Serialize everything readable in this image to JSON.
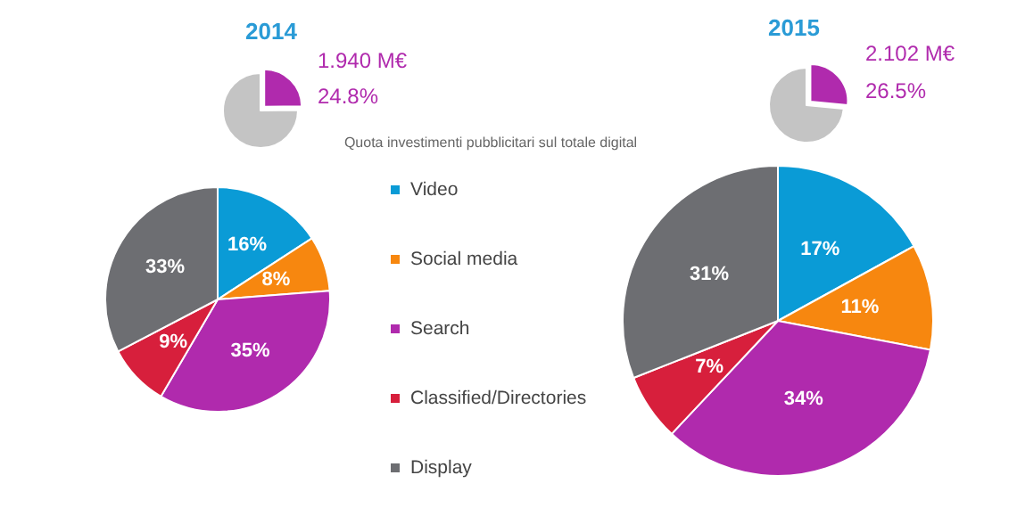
{
  "chart_data": [
    {
      "type": "pie",
      "title": "2014",
      "categories": [
        null,
        null
      ],
      "values": [
        24.8,
        75.2
      ],
      "colors": [
        "#b02aad",
        "#c4c4c4"
      ],
      "annotations": [
        "1.940 M€",
        "24.8%"
      ],
      "legend": false
    },
    {
      "type": "pie",
      "title": "2015",
      "categories": [
        null,
        null
      ],
      "values": [
        26.5,
        73.5
      ],
      "colors": [
        "#b02aad",
        "#c4c4c4"
      ],
      "annotations": [
        "2.102 M€",
        "26.5%"
      ],
      "legend": false
    },
    {
      "type": "pie",
      "title": "Quota investimenti pubblicitari sul totale digital",
      "categories": [
        "Video",
        "Social media",
        "Search",
        "Classified/Directories",
        "Display"
      ],
      "legend": "center",
      "series": [
        {
          "values": [
            16,
            8,
            35,
            9,
            33
          ],
          "colors": [
            "#0a9bd6",
            "#f7870f",
            "#b02aad",
            "#d71f3c",
            "#6d6e72"
          ],
          "value_labels": [
            "16%",
            "8%",
            "35%",
            "9%",
            "33%"
          ]
        },
        {
          "values": [
            17,
            11,
            34,
            7,
            31
          ],
          "colors": [
            "#0a9bd6",
            "#f7870f",
            "#b02aad",
            "#d71f3c",
            "#6d6e72"
          ],
          "value_labels": [
            "17%",
            "11%",
            "34%",
            "7%",
            "31%"
          ]
        }
      ]
    }
  ]
}
